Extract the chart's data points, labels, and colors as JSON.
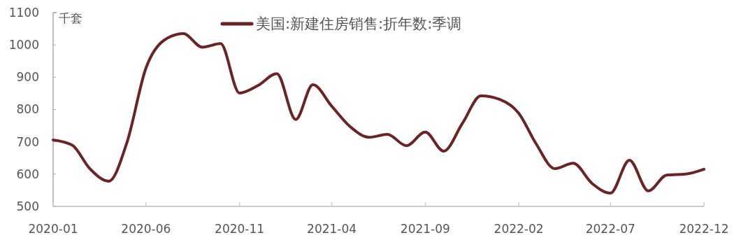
{
  "chart_data": {
    "type": "line",
    "ylabel": "千套",
    "x": [
      "2020-01",
      "2020-02",
      "2020-03",
      "2020-04",
      "2020-05",
      "2020-06",
      "2020-07",
      "2020-08",
      "2020-09",
      "2020-10",
      "2020-11",
      "2020-12",
      "2021-01",
      "2021-02",
      "2021-03",
      "2021-04",
      "2021-05",
      "2021-06",
      "2021-07",
      "2021-08",
      "2021-09",
      "2021-10",
      "2021-11",
      "2021-12",
      "2022-01",
      "2022-02",
      "2022-03",
      "2022-04",
      "2022-05",
      "2022-06",
      "2022-07",
      "2022-08",
      "2022-09",
      "2022-10",
      "2022-11",
      "2022-12"
    ],
    "series": [
      {
        "name": "美国:新建住房销售:折年数:季调",
        "color": "#6b2426",
        "values": [
          706,
          690,
          617,
          578,
          699,
          929,
          1015,
          1035,
          993,
          1004,
          851,
          874,
          911,
          769,
          877,
          810,
          747,
          714,
          723,
          688,
          730,
          671,
          758,
          842,
          831,
          788,
          695,
          617,
          634,
          571,
          541,
          643,
          548,
          597,
          600,
          615
        ]
      }
    ],
    "xlim": [
      "2020-01",
      "2022-12"
    ],
    "xticks": [
      "2020-01",
      "2020-06",
      "2020-11",
      "2021-04",
      "2021-09",
      "2022-02",
      "2022-07",
      "2022-12"
    ],
    "ylim": [
      500,
      1100
    ],
    "yticks": [
      500,
      600,
      700,
      800,
      900,
      1000,
      1100
    ],
    "grid": false,
    "legend": "top",
    "marker": "none",
    "line_style": "solid"
  }
}
